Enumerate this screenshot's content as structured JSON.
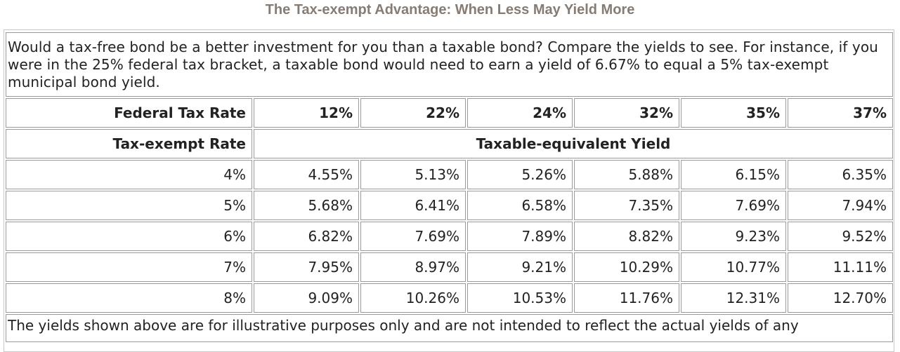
{
  "page": {
    "title": "The Tax-exempt Advantage: When Less May Yield More"
  },
  "intro_text": "Would a tax-free bond be a better investment for you than a taxable bond? Compare the yields to see. For instance, if you were in the 25% federal tax bracket, a taxable bond would need to earn a yield of 6.67% to equal a 5% tax-exempt municipal bond yield.",
  "table": {
    "header_label": "Federal Tax Rate",
    "tax_rates": [
      "12%",
      "22%",
      "24%",
      "32%",
      "35%",
      "37%"
    ],
    "subheader_label": "Tax-exempt Rate",
    "subheader_span": "Taxable-equivalent Yield",
    "rows": [
      {
        "rate": "4%",
        "values": [
          "4.55%",
          "5.13%",
          "5.26%",
          "5.88%",
          "6.15%",
          "6.35%"
        ]
      },
      {
        "rate": "5%",
        "values": [
          "5.68%",
          "6.41%",
          "6.58%",
          "7.35%",
          "7.69%",
          "7.94%"
        ]
      },
      {
        "rate": "6%",
        "values": [
          "6.82%",
          "7.69%",
          "7.89%",
          "8.82%",
          "9.23%",
          "9.52%"
        ]
      },
      {
        "rate": "7%",
        "values": [
          "7.95%",
          "8.97%",
          "9.21%",
          "10.29%",
          "10.77%",
          "11.11%"
        ]
      },
      {
        "rate": "8%",
        "values": [
          "9.09%",
          "10.26%",
          "10.53%",
          "11.76%",
          "12.31%",
          "12.70%"
        ]
      }
    ]
  },
  "footer_text": "The yields shown above are for illustrative purposes only and are not intended to reflect the actual yields of any",
  "colors": {
    "title": "#877c74",
    "text": "#222222",
    "border": "#9a9a9a"
  }
}
